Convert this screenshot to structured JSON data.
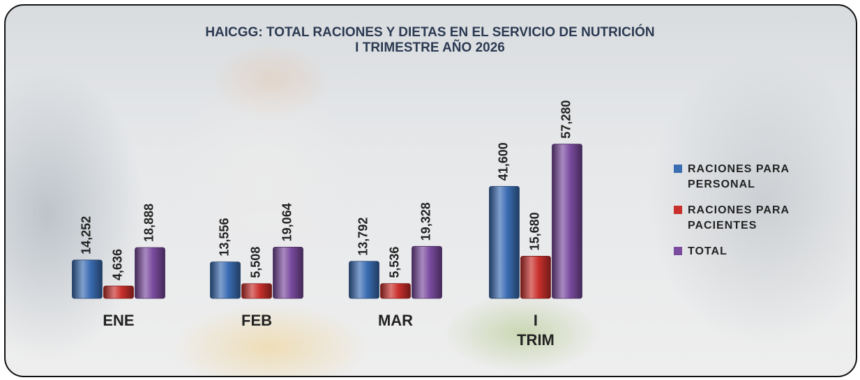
{
  "chart_data": {
    "type": "bar",
    "title": "HAICGG: TOTAL RACIONES Y DIETAS EN EL SERVICIO DE NUTRICIÓN",
    "subtitle": "I TRIMESTRE AÑO 2026",
    "categories": [
      "ENE",
      "FEB",
      "MAR",
      "I TRIM"
    ],
    "series": [
      {
        "name": "RACIONES PARA PERSONAL",
        "color": "#3b6db3",
        "values": [
          14252,
          13556,
          13792,
          41600
        ],
        "value_labels": [
          "14,252",
          "13,556",
          "13,792",
          "41,600"
        ]
      },
      {
        "name": "RACIONES PARA PACIENTES",
        "color": "#c9302c",
        "values": [
          4636,
          5508,
          5536,
          15680
        ],
        "value_labels": [
          "4,636",
          "5,508",
          "5,536",
          "15,680"
        ]
      },
      {
        "name": "TOTAL",
        "color": "#7a4b9f",
        "values": [
          18888,
          19064,
          19328,
          57280
        ],
        "value_labels": [
          "18,888",
          "19,064",
          "19,328",
          "57,280"
        ]
      }
    ],
    "ylim": [
      0,
      66000
    ],
    "legend": "right"
  }
}
